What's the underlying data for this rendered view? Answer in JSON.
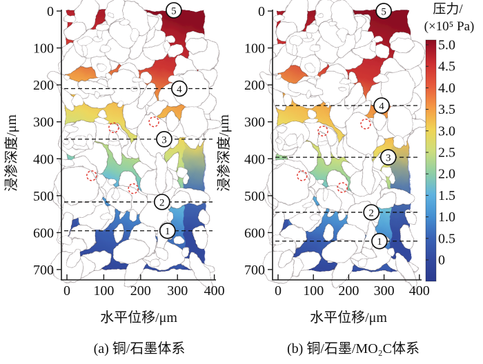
{
  "figure": {
    "background": "#ffffff",
    "type_note": "pressure field map of infiltration simulation"
  },
  "chart_data": {
    "type": "heatmap",
    "panels": [
      {
        "id": "a",
        "caption": "(a) 铜/石墨体系",
        "xlabel": "水平位移/μm",
        "ylabel": "浸渗深度/μm",
        "xlim": [
          0,
          400
        ],
        "ylim": [
          0,
          700
        ],
        "x_ticks": [
          0,
          100,
          200,
          300,
          400
        ],
        "y_ticks": [
          0,
          100,
          200,
          300,
          400,
          500,
          600,
          700
        ],
        "depth_markers": [
          {
            "label": "5",
            "depth": -2,
            "x": 290,
            "line": false
          },
          {
            "label": "4",
            "depth": 210,
            "x": 305,
            "line": true
          },
          {
            "label": "3",
            "depth": 347,
            "x": 264,
            "line": true
          },
          {
            "label": "2",
            "depth": 517,
            "x": 258,
            "line": true
          },
          {
            "label": "1",
            "depth": 595,
            "x": 273,
            "line": true
          }
        ],
        "red_circles": [
          {
            "x": 127,
            "depth": 316
          },
          {
            "x": 236,
            "depth": 300
          },
          {
            "x": 67,
            "depth": 446
          },
          {
            "x": 180,
            "depth": 481
          }
        ],
        "gradient": [
          [
            0.0,
            "#8c0f22"
          ],
          [
            0.05,
            "#a81b29"
          ],
          [
            0.13,
            "#c22a30"
          ],
          [
            0.2,
            "#cf3633"
          ],
          [
            0.26,
            "#e26a3d"
          ],
          [
            0.32,
            "#ef9843"
          ],
          [
            0.38,
            "#f3ba4e"
          ],
          [
            0.45,
            "#edd75e"
          ],
          [
            0.52,
            "#cfdf7c"
          ],
          [
            0.59,
            "#a5d595"
          ],
          [
            0.635,
            "#85ccb3"
          ],
          [
            0.68,
            "#69bcdb"
          ],
          [
            0.73,
            "#54a4d8"
          ],
          [
            0.79,
            "#4584ca"
          ],
          [
            0.88,
            "#3a5fb2"
          ],
          [
            1.0,
            "#31479c"
          ]
        ]
      },
      {
        "id": "b",
        "caption": "(b) 铜/石墨/MO₂C体系",
        "xlabel": "水平位移/μm",
        "ylabel": "浸渗深度/μm",
        "xlim": [
          0,
          400
        ],
        "ylim": [
          0,
          700
        ],
        "x_ticks": [
          0,
          100,
          200,
          300,
          400
        ],
        "y_ticks": [
          0,
          100,
          200,
          300,
          400,
          500,
          600,
          700
        ],
        "depth_markers": [
          {
            "label": "5",
            "depth": 0,
            "x": 299,
            "line": false
          },
          {
            "label": "4",
            "depth": 256,
            "x": 293,
            "line": true
          },
          {
            "label": "3",
            "depth": 396,
            "x": 312,
            "line": true
          },
          {
            "label": "2",
            "depth": 545,
            "x": 264,
            "line": true
          },
          {
            "label": "1",
            "depth": 623,
            "x": 287,
            "line": true
          }
        ],
        "red_circles": [
          {
            "x": 127,
            "depth": 325
          },
          {
            "x": 248,
            "depth": 306
          },
          {
            "x": 68,
            "depth": 446
          },
          {
            "x": 182,
            "depth": 478
          }
        ],
        "gradient": [
          [
            0.0,
            "#8c0f22"
          ],
          [
            0.09,
            "#a81b29"
          ],
          [
            0.17,
            "#c22a30"
          ],
          [
            0.24,
            "#cf3633"
          ],
          [
            0.3,
            "#e26a3d"
          ],
          [
            0.36,
            "#ef9843"
          ],
          [
            0.43,
            "#f3ba4e"
          ],
          [
            0.5,
            "#edd75e"
          ],
          [
            0.57,
            "#cfdf7c"
          ],
          [
            0.63,
            "#a5d595"
          ],
          [
            0.675,
            "#85ccb3"
          ],
          [
            0.72,
            "#69bcdb"
          ],
          [
            0.77,
            "#54a4d8"
          ],
          [
            0.83,
            "#4584ca"
          ],
          [
            0.91,
            "#3a5fb2"
          ],
          [
            1.0,
            "#31479c"
          ]
        ]
      }
    ],
    "colorbar": {
      "title_line1": "压力/",
      "title_line2": "(×10⁵ Pa)",
      "values": [
        5.0,
        4.5,
        4.0,
        3.5,
        3.0,
        2.5,
        2.0,
        1.5,
        1.0,
        0.5,
        0
      ],
      "tick_labels": [
        "5.0",
        "4.5",
        "4.0",
        "3.5",
        "3.0",
        "2.5",
        "2.0",
        "1.5",
        "1.0",
        "0.5",
        "0"
      ],
      "gradient": [
        [
          0.0,
          "#8a0e1f"
        ],
        [
          0.02,
          "#9c1126"
        ],
        [
          0.098,
          "#cd2f31"
        ],
        [
          0.188,
          "#e75a3c"
        ],
        [
          0.28,
          "#f59a45"
        ],
        [
          0.37,
          "#f0d455"
        ],
        [
          0.46,
          "#cede7c"
        ],
        [
          0.55,
          "#8fcfa5"
        ],
        [
          0.64,
          "#5fb3e0"
        ],
        [
          0.73,
          "#4590d2"
        ],
        [
          0.82,
          "#3a63b6"
        ],
        [
          0.91,
          "#32499f"
        ],
        [
          1.0,
          "#2a3a8e"
        ]
      ]
    },
    "annotation_colors": {
      "dashed_line": "#111111",
      "marker_circle_stroke": "#111111",
      "defect_circle": "#e03c34"
    }
  }
}
